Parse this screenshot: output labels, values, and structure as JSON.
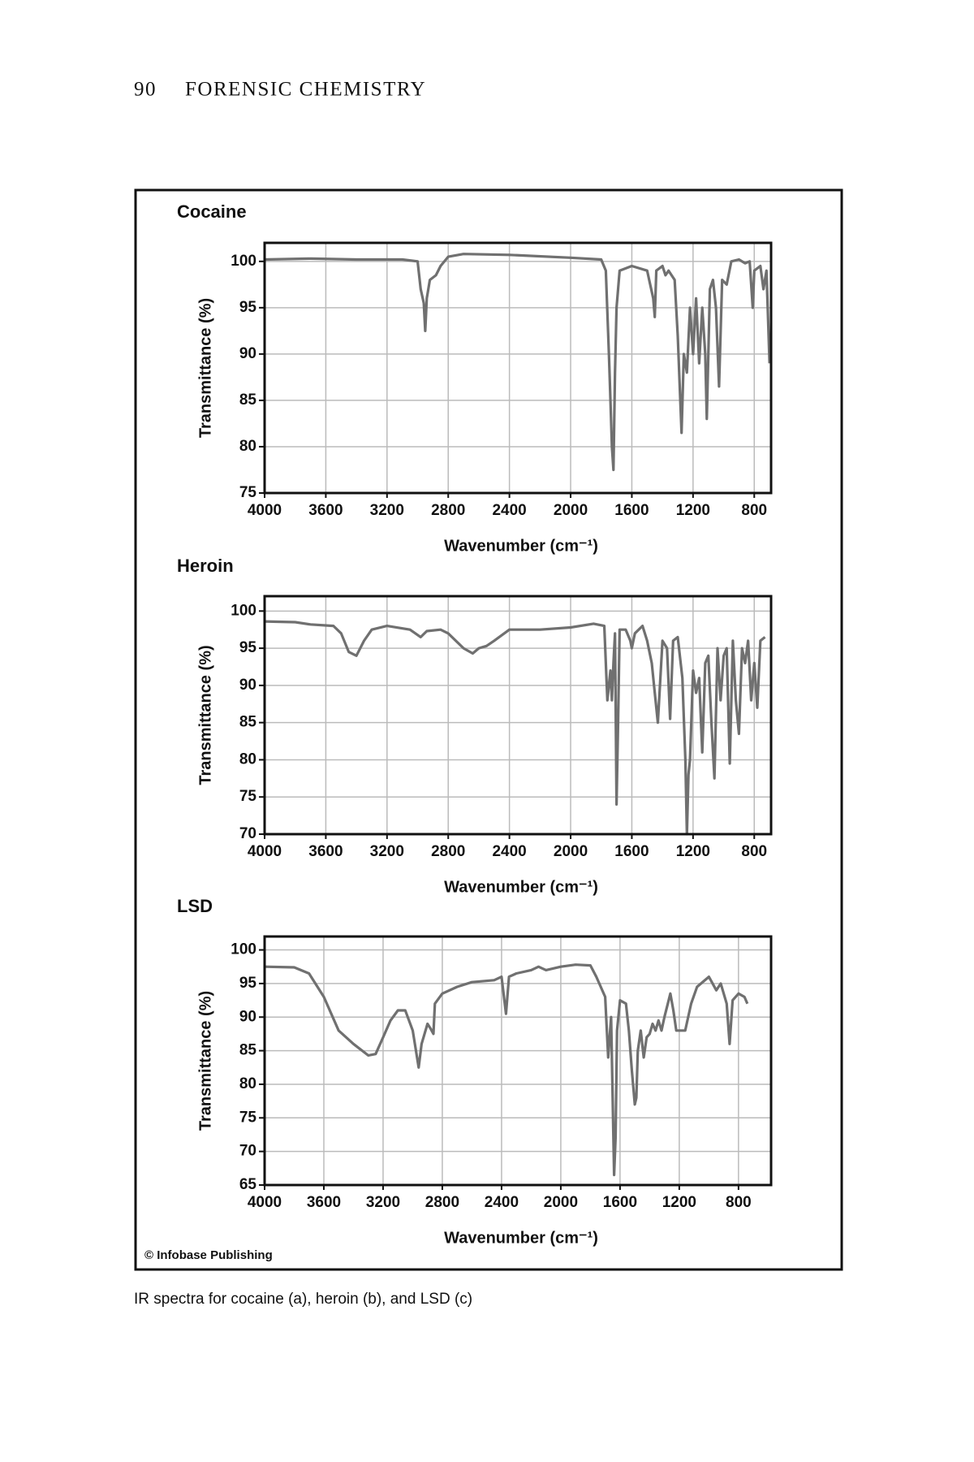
{
  "header": {
    "page_number": "90",
    "title": "FORENSIC CHEMISTRY"
  },
  "credit": "© Infobase Publishing",
  "caption": "IR spectra for cocaine (a), heroin (b), and LSD (c)",
  "chart_data": [
    {
      "type": "line",
      "title": "Cocaine",
      "x_label": "Wavenumber (cm⁻¹)",
      "y_label": "Transmittance (%)",
      "xlim": [
        4000,
        690
      ],
      "ylim": [
        75,
        102
      ],
      "xticks": [
        4000,
        3600,
        3200,
        2800,
        2400,
        2000,
        1600,
        1200,
        800
      ],
      "yticks": [
        75,
        80,
        85,
        90,
        95,
        100
      ],
      "grid": true,
      "series": [
        {
          "color": "#707070",
          "x": [
            4000,
            3700,
            3400,
            3100,
            3000,
            2980,
            2960,
            2950,
            2940,
            2920,
            2880,
            2850,
            2800,
            2700,
            2400,
            2000,
            1800,
            1770,
            1750,
            1740,
            1730,
            1720,
            1710,
            1700,
            1680,
            1600,
            1500,
            1460,
            1450,
            1440,
            1400,
            1380,
            1360,
            1320,
            1300,
            1275,
            1260,
            1240,
            1220,
            1200,
            1180,
            1160,
            1140,
            1120,
            1110,
            1090,
            1070,
            1050,
            1030,
            1010,
            980,
            950,
            900,
            860,
            830,
            810,
            800,
            760,
            740,
            720,
            700
          ],
          "values": [
            100.2,
            100.3,
            100.2,
            100.2,
            100,
            97,
            95.5,
            92.5,
            96,
            98,
            98.5,
            99.5,
            100.5,
            100.8,
            100.7,
            100.4,
            100.2,
            99,
            90,
            85,
            80,
            77.5,
            88,
            95,
            99,
            99.5,
            99,
            96,
            94,
            99,
            99.5,
            98.5,
            99,
            98,
            92,
            81.5,
            90,
            88,
            95,
            90,
            96,
            89,
            95,
            90,
            83,
            97,
            98,
            95,
            86.5,
            98,
            97.5,
            100,
            100.2,
            99.8,
            100,
            95,
            99,
            99.5,
            97,
            99,
            89
          ]
        }
      ]
    },
    {
      "type": "line",
      "title": "Heroin",
      "x_label": "Wavenumber (cm⁻¹)",
      "y_label": "Transmittance (%)",
      "xlim": [
        4000,
        690
      ],
      "ylim": [
        70,
        102
      ],
      "xticks": [
        4000,
        3600,
        3200,
        2800,
        2400,
        2000,
        1600,
        1200,
        800
      ],
      "yticks": [
        70,
        75,
        80,
        85,
        90,
        95,
        100
      ],
      "grid": true,
      "series": [
        {
          "color": "#707070",
          "x": [
            4000,
            3800,
            3700,
            3550,
            3500,
            3450,
            3400,
            3350,
            3300,
            3200,
            3050,
            2980,
            2940,
            2850,
            2800,
            2700,
            2640,
            2600,
            2550,
            2500,
            2400,
            2200,
            2000,
            1850,
            1780,
            1760,
            1740,
            1730,
            1720,
            1710,
            1700,
            1690,
            1680,
            1640,
            1610,
            1600,
            1580,
            1530,
            1500,
            1470,
            1450,
            1430,
            1400,
            1370,
            1350,
            1330,
            1300,
            1270,
            1250,
            1240,
            1230,
            1220,
            1200,
            1180,
            1160,
            1140,
            1120,
            1100,
            1080,
            1060,
            1040,
            1020,
            1000,
            980,
            960,
            940,
            920,
            900,
            880,
            860,
            840,
            820,
            800,
            780,
            760,
            730
          ],
          "values": [
            98.6,
            98.5,
            98.2,
            98,
            97,
            94.5,
            94,
            96,
            97.5,
            98,
            97.5,
            96.5,
            97.3,
            97.5,
            97,
            95,
            94.3,
            95,
            95.3,
            96,
            97.5,
            97.5,
            97.8,
            98.3,
            98,
            88,
            92,
            88,
            93,
            97,
            74,
            85,
            97.5,
            97.5,
            96,
            95,
            97,
            98,
            96,
            93,
            89,
            85,
            96,
            95,
            85.5,
            96,
            96.5,
            91,
            80,
            70,
            78,
            80,
            92,
            89,
            91,
            81,
            93,
            94,
            85,
            77.5,
            95,
            88,
            94,
            95,
            79.5,
            96,
            88,
            83.5,
            95,
            93,
            96,
            88,
            93,
            87,
            96,
            96.5
          ]
        }
      ]
    },
    {
      "type": "line",
      "title": "LSD",
      "x_label": "Wavenumber (cm⁻¹)",
      "y_label": "Transmittance (%)",
      "xlim": [
        4000,
        580
      ],
      "ylim": [
        65,
        102
      ],
      "xticks": [
        4000,
        3600,
        3200,
        2800,
        2400,
        2000,
        1600,
        1200,
        800
      ],
      "yticks": [
        65,
        70,
        75,
        80,
        85,
        90,
        95,
        100
      ],
      "grid": true,
      "series": [
        {
          "color": "#707070",
          "x": [
            4000,
            3800,
            3700,
            3600,
            3500,
            3400,
            3300,
            3250,
            3200,
            3150,
            3100,
            3050,
            3000,
            2960,
            2940,
            2900,
            2880,
            2860,
            2850,
            2800,
            2700,
            2600,
            2450,
            2400,
            2370,
            2350,
            2300,
            2200,
            2150,
            2100,
            2000,
            1900,
            1800,
            1760,
            1700,
            1680,
            1660,
            1650,
            1640,
            1630,
            1620,
            1600,
            1560,
            1540,
            1520,
            1500,
            1490,
            1480,
            1460,
            1440,
            1420,
            1400,
            1380,
            1360,
            1340,
            1320,
            1300,
            1260,
            1240,
            1220,
            1160,
            1120,
            1080,
            1000,
            950,
            920,
            880,
            860,
            840,
            800,
            760,
            740
          ],
          "values": [
            97.5,
            97.4,
            96.5,
            93,
            88,
            86,
            84.3,
            84.5,
            87,
            89.5,
            91,
            91,
            88,
            82.5,
            86,
            89,
            88.3,
            87.5,
            92,
            93.5,
            94.5,
            95.2,
            95.5,
            96,
            90.5,
            96,
            96.5,
            97,
            97.5,
            97,
            97.5,
            97.8,
            97.7,
            96,
            93,
            84,
            90,
            78,
            66.5,
            72,
            88,
            92.5,
            92,
            88,
            82,
            77,
            78,
            85,
            88,
            84,
            87,
            87.5,
            89,
            88,
            89.5,
            88,
            90,
            93.5,
            91,
            88,
            88,
            92,
            94.5,
            96,
            94,
            95,
            92,
            86,
            92.5,
            93.5,
            93,
            92
          ]
        }
      ]
    }
  ]
}
